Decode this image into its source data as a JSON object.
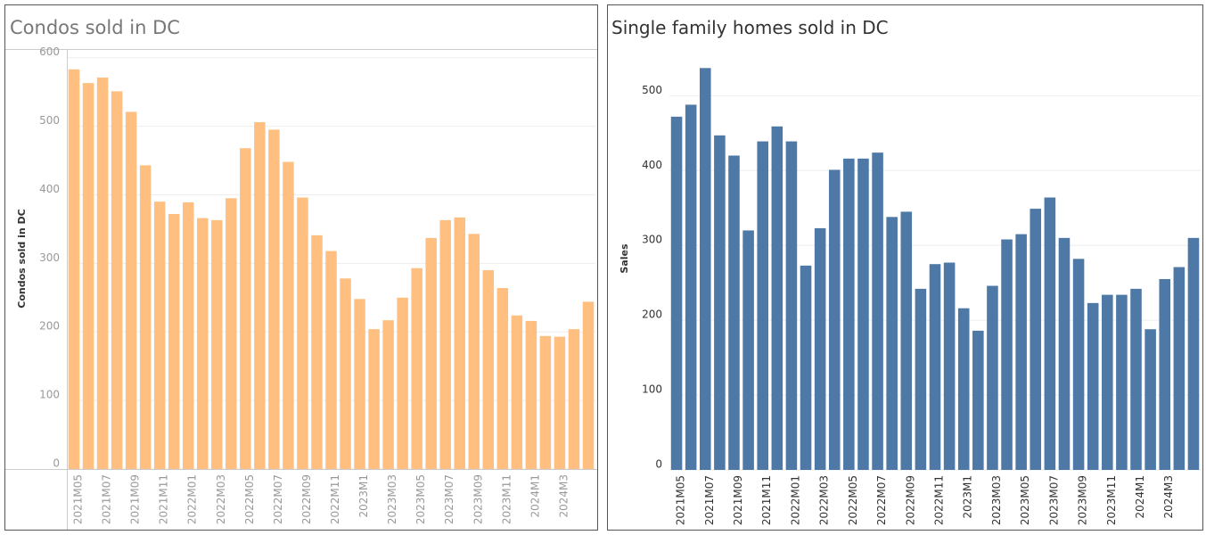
{
  "chart_data": [
    {
      "type": "bar",
      "title": "Condos sold in DC",
      "y_label": "Condos sold in DC",
      "categories": [
        "2021M05",
        null,
        "2021M07",
        null,
        "2021M09",
        null,
        "2021M11",
        null,
        "2022M01",
        null,
        "2022M03",
        null,
        "2022M05",
        null,
        "2022M07",
        null,
        "2022M09",
        null,
        "2022M11",
        null,
        "2023M1",
        null,
        "2023M03",
        null,
        "2023M05",
        null,
        "2023M07",
        null,
        "2023M09",
        null,
        "2023M11",
        null,
        "2024M1",
        null,
        "2024M3",
        null,
        null
      ],
      "values": [
        583,
        563,
        571,
        551,
        521,
        443,
        390,
        372,
        389,
        366,
        363,
        395,
        468,
        506,
        495,
        448,
        396,
        341,
        318,
        278,
        248,
        204,
        217,
        250,
        293,
        337,
        363,
        367,
        343,
        290,
        264,
        224,
        216,
        194,
        193,
        204,
        244
      ],
      "color": "#ffbf80",
      "ylim": [
        0,
        610
      ],
      "yticks": [
        0,
        100,
        200,
        300,
        400,
        500,
        600
      ],
      "grid": true
    },
    {
      "type": "bar",
      "title": "Single family homes sold in DC",
      "y_label": "Sales",
      "categories": [
        "2021M05",
        null,
        "2021M07",
        null,
        "2021M09",
        null,
        "2021M11",
        null,
        "2022M01",
        null,
        "2022M03",
        null,
        "2022M05",
        null,
        "2022M07",
        null,
        "2022M09",
        null,
        "2022M11",
        null,
        "2023M1",
        null,
        "2023M03",
        null,
        "2023M05",
        null,
        "2023M07",
        null,
        "2023M09",
        null,
        "2023M11",
        null,
        "2024M1",
        null,
        "2024M3",
        null,
        null
      ],
      "values": [
        472,
        488,
        537,
        447,
        420,
        320,
        439,
        459,
        439,
        273,
        323,
        401,
        416,
        416,
        424,
        338,
        345,
        242,
        275,
        277,
        216,
        186,
        246,
        308,
        315,
        349,
        364,
        310,
        282,
        223,
        234,
        234,
        242,
        188,
        255,
        271,
        310
      ],
      "color": "#4e79a7",
      "ylim": [
        0,
        560
      ],
      "yticks": [
        0,
        100,
        200,
        300,
        400,
        500
      ],
      "grid": true
    }
  ]
}
